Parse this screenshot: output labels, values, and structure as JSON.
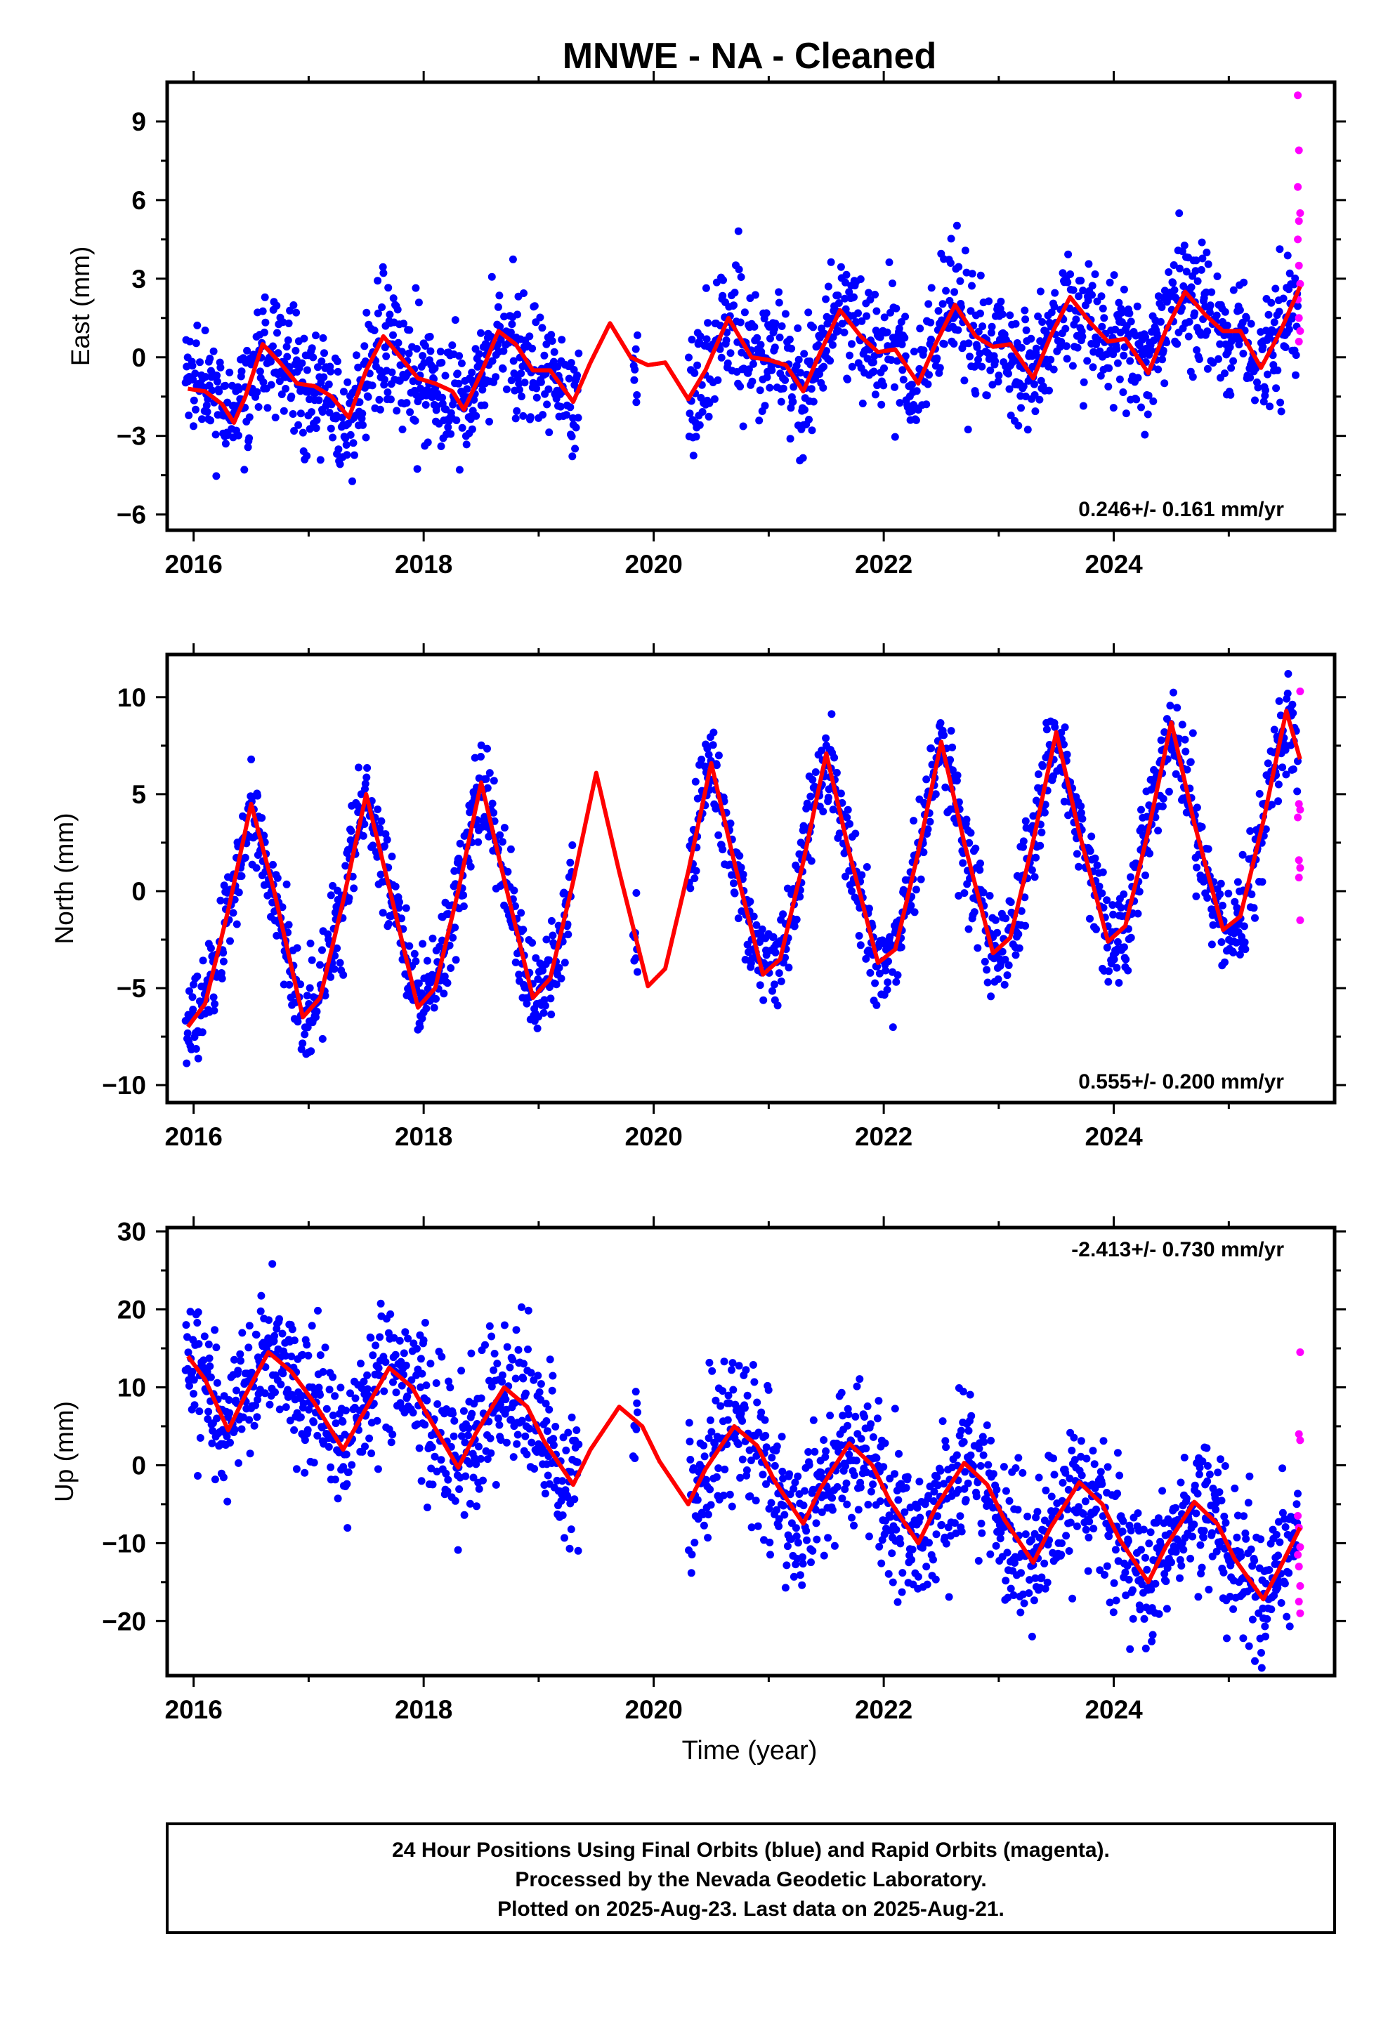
{
  "title": "MNWE  - NA - Cleaned",
  "footer": {
    "lines": [
      "24 Hour Positions Using Final Orbits (blue) and Rapid Orbits (magenta).",
      "Processed by the Nevada Geodetic Laboratory.",
      "Plotted on 2025-Aug-23. Last data on 2025-Aug-21."
    ]
  },
  "colors": {
    "final": "#0000ff",
    "rapid": "#ff00ff",
    "model": "#ff0000",
    "frame": "#000000"
  },
  "chart_data": [
    {
      "type": "scatter",
      "ylabel": "East (mm)",
      "xlabel": "",
      "rate_label": "0.246+/- 0.161 mm/yr",
      "xlim": [
        2015.77,
        2025.92
      ],
      "ylim": [
        -6.6,
        10.5
      ],
      "xticks": [
        2016,
        2018,
        2020,
        2022,
        2024
      ],
      "yticks": [
        -6,
        -3,
        0,
        3,
        6,
        9
      ],
      "grid": false,
      "series": [
        {
          "role": "model",
          "values": [
            {
              "x": 2015.95,
              "y": -1.2
            },
            {
              "x": 2016.1,
              "y": -1.3
            },
            {
              "x": 2016.25,
              "y": -1.8
            },
            {
              "x": 2016.35,
              "y": -2.5
            },
            {
              "x": 2016.45,
              "y": -1.5
            },
            {
              "x": 2016.6,
              "y": 0.5
            },
            {
              "x": 2016.75,
              "y": -0.2
            },
            {
              "x": 2016.9,
              "y": -1.0
            },
            {
              "x": 2017.05,
              "y": -1.1
            },
            {
              "x": 2017.2,
              "y": -1.5
            },
            {
              "x": 2017.35,
              "y": -2.3
            },
            {
              "x": 2017.5,
              "y": -0.5
            },
            {
              "x": 2017.65,
              "y": 0.8
            },
            {
              "x": 2017.8,
              "y": 0.0
            },
            {
              "x": 2017.95,
              "y": -0.8
            },
            {
              "x": 2018.1,
              "y": -1.0
            },
            {
              "x": 2018.25,
              "y": -1.3
            },
            {
              "x": 2018.35,
              "y": -2.0
            },
            {
              "x": 2018.5,
              "y": -0.6
            },
            {
              "x": 2018.65,
              "y": 1.0
            },
            {
              "x": 2018.8,
              "y": 0.5
            },
            {
              "x": 2018.95,
              "y": -0.5
            },
            {
              "x": 2019.1,
              "y": -0.5
            },
            {
              "x": 2019.3,
              "y": -1.7
            },
            {
              "x": 2019.45,
              "y": -0.2
            },
            {
              "x": 2019.62,
              "y": 1.3
            },
            {
              "x": 2019.8,
              "y": 0.0
            },
            {
              "x": 2019.95,
              "y": -0.3
            },
            {
              "x": 2020.1,
              "y": -0.2
            },
            {
              "x": 2020.3,
              "y": -1.6
            },
            {
              "x": 2020.45,
              "y": -0.5
            },
            {
              "x": 2020.65,
              "y": 1.5
            },
            {
              "x": 2020.85,
              "y": 0.0
            },
            {
              "x": 2021.0,
              "y": -0.1
            },
            {
              "x": 2021.15,
              "y": -0.3
            },
            {
              "x": 2021.3,
              "y": -1.3
            },
            {
              "x": 2021.45,
              "y": 0.2
            },
            {
              "x": 2021.62,
              "y": 1.8
            },
            {
              "x": 2021.8,
              "y": 0.8
            },
            {
              "x": 2021.95,
              "y": 0.2
            },
            {
              "x": 2022.1,
              "y": 0.3
            },
            {
              "x": 2022.3,
              "y": -1.0
            },
            {
              "x": 2022.45,
              "y": 0.5
            },
            {
              "x": 2022.62,
              "y": 2.0
            },
            {
              "x": 2022.8,
              "y": 0.8
            },
            {
              "x": 2022.95,
              "y": 0.4
            },
            {
              "x": 2023.1,
              "y": 0.5
            },
            {
              "x": 2023.3,
              "y": -0.8
            },
            {
              "x": 2023.45,
              "y": 0.8
            },
            {
              "x": 2023.62,
              "y": 2.3
            },
            {
              "x": 2023.8,
              "y": 1.3
            },
            {
              "x": 2023.95,
              "y": 0.6
            },
            {
              "x": 2024.1,
              "y": 0.7
            },
            {
              "x": 2024.3,
              "y": -0.6
            },
            {
              "x": 2024.45,
              "y": 1.0
            },
            {
              "x": 2024.62,
              "y": 2.5
            },
            {
              "x": 2024.8,
              "y": 1.6
            },
            {
              "x": 2024.95,
              "y": 1.0
            },
            {
              "x": 2025.1,
              "y": 1.0
            },
            {
              "x": 2025.28,
              "y": -0.4
            },
            {
              "x": 2025.45,
              "y": 1.0
            },
            {
              "x": 2025.62,
              "y": 2.7
            }
          ]
        },
        {
          "role": "rapid",
          "values": [
            {
              "x": 2025.6,
              "y": 10.0
            },
            {
              "x": 2025.61,
              "y": 7.9
            },
            {
              "x": 2025.6,
              "y": 6.5
            },
            {
              "x": 2025.62,
              "y": 5.5
            },
            {
              "x": 2025.61,
              "y": 5.2
            },
            {
              "x": 2025.6,
              "y": 4.5
            },
            {
              "x": 2025.61,
              "y": 3.5
            },
            {
              "x": 2025.62,
              "y": 2.8
            },
            {
              "x": 2025.6,
              "y": 2.2
            },
            {
              "x": 2025.61,
              "y": 1.5
            },
            {
              "x": 2025.62,
              "y": 1.0
            },
            {
              "x": 2025.61,
              "y": 0.6
            }
          ]
        }
      ],
      "scatter_final": {
        "gap": [
          2019.35,
          2020.3
        ],
        "noise": 1.2
      }
    },
    {
      "type": "scatter",
      "ylabel": "North (mm)",
      "xlabel": "",
      "rate_label": "0.555+/- 0.200 mm/yr",
      "xlim": [
        2015.77,
        2025.92
      ],
      "ylim": [
        -10.9,
        12.2
      ],
      "xticks": [
        2016,
        2018,
        2020,
        2022,
        2024
      ],
      "yticks": [
        -10,
        -5,
        0,
        5,
        10
      ],
      "grid": false,
      "series": [
        {
          "role": "model",
          "values": [
            {
              "x": 2015.95,
              "y": -7.0
            },
            {
              "x": 2016.1,
              "y": -5.8
            },
            {
              "x": 2016.3,
              "y": -1.0
            },
            {
              "x": 2016.5,
              "y": 4.5
            },
            {
              "x": 2016.7,
              "y": 0.0
            },
            {
              "x": 2016.95,
              "y": -6.5
            },
            {
              "x": 2017.1,
              "y": -5.5
            },
            {
              "x": 2017.3,
              "y": -0.5
            },
            {
              "x": 2017.5,
              "y": 5.0
            },
            {
              "x": 2017.7,
              "y": 0.2
            },
            {
              "x": 2017.95,
              "y": -6.0
            },
            {
              "x": 2018.1,
              "y": -5.0
            },
            {
              "x": 2018.3,
              "y": 0.0
            },
            {
              "x": 2018.5,
              "y": 5.6
            },
            {
              "x": 2018.7,
              "y": 0.6
            },
            {
              "x": 2018.95,
              "y": -5.5
            },
            {
              "x": 2019.1,
              "y": -4.5
            },
            {
              "x": 2019.3,
              "y": 0.5
            },
            {
              "x": 2019.5,
              "y": 6.1
            },
            {
              "x": 2019.7,
              "y": 1.0
            },
            {
              "x": 2019.95,
              "y": -4.9
            },
            {
              "x": 2020.1,
              "y": -4.0
            },
            {
              "x": 2020.3,
              "y": 1.0
            },
            {
              "x": 2020.5,
              "y": 6.6
            },
            {
              "x": 2020.7,
              "y": 1.5
            },
            {
              "x": 2020.95,
              "y": -4.3
            },
            {
              "x": 2021.1,
              "y": -3.5
            },
            {
              "x": 2021.3,
              "y": 1.5
            },
            {
              "x": 2021.5,
              "y": 7.1
            },
            {
              "x": 2021.7,
              "y": 2.0
            },
            {
              "x": 2021.95,
              "y": -3.7
            },
            {
              "x": 2022.1,
              "y": -3.0
            },
            {
              "x": 2022.3,
              "y": 2.0
            },
            {
              "x": 2022.5,
              "y": 7.7
            },
            {
              "x": 2022.7,
              "y": 2.5
            },
            {
              "x": 2022.95,
              "y": -3.2
            },
            {
              "x": 2023.1,
              "y": -2.4
            },
            {
              "x": 2023.3,
              "y": 2.6
            },
            {
              "x": 2023.5,
              "y": 8.2
            },
            {
              "x": 2023.7,
              "y": 3.0
            },
            {
              "x": 2023.95,
              "y": -2.6
            },
            {
              "x": 2024.1,
              "y": -1.8
            },
            {
              "x": 2024.3,
              "y": 3.1
            },
            {
              "x": 2024.5,
              "y": 8.7
            },
            {
              "x": 2024.7,
              "y": 3.5
            },
            {
              "x": 2024.95,
              "y": -2.0
            },
            {
              "x": 2025.1,
              "y": -1.3
            },
            {
              "x": 2025.3,
              "y": 3.6
            },
            {
              "x": 2025.5,
              "y": 9.3
            },
            {
              "x": 2025.62,
              "y": 6.8
            }
          ]
        },
        {
          "role": "rapid",
          "values": [
            {
              "x": 2025.62,
              "y": 10.3
            },
            {
              "x": 2025.61,
              "y": 4.5
            },
            {
              "x": 2025.62,
              "y": 4.2
            },
            {
              "x": 2025.6,
              "y": 3.8
            },
            {
              "x": 2025.61,
              "y": 1.6
            },
            {
              "x": 2025.62,
              "y": 1.2
            },
            {
              "x": 2025.61,
              "y": 0.7
            },
            {
              "x": 2025.62,
              "y": -1.5
            }
          ]
        }
      ],
      "scatter_final": {
        "gap": [
          2019.3,
          2020.3
        ],
        "noise": 1.2
      }
    },
    {
      "type": "scatter",
      "ylabel": "Up (mm)",
      "xlabel": "Time (year)",
      "rate_label": "-2.413+/- 0.730 mm/yr",
      "xlim": [
        2015.77,
        2025.92
      ],
      "ylim": [
        -27.0,
        30.5
      ],
      "xticks": [
        2016,
        2018,
        2020,
        2022,
        2024
      ],
      "yticks": [
        -20,
        -10,
        0,
        10,
        20,
        30
      ],
      "grid": false,
      "series": [
        {
          "role": "model",
          "values": [
            {
              "x": 2015.95,
              "y": 14.0
            },
            {
              "x": 2016.1,
              "y": 11.0
            },
            {
              "x": 2016.3,
              "y": 4.5
            },
            {
              "x": 2016.45,
              "y": 9.0
            },
            {
              "x": 2016.65,
              "y": 14.5
            },
            {
              "x": 2016.85,
              "y": 12.0
            },
            {
              "x": 2017.05,
              "y": 8.0
            },
            {
              "x": 2017.3,
              "y": 2.0
            },
            {
              "x": 2017.45,
              "y": 6.0
            },
            {
              "x": 2017.7,
              "y": 12.5
            },
            {
              "x": 2017.9,
              "y": 10.0
            },
            {
              "x": 2018.05,
              "y": 6.0
            },
            {
              "x": 2018.3,
              "y": -0.3
            },
            {
              "x": 2018.45,
              "y": 4.0
            },
            {
              "x": 2018.7,
              "y": 10.0
            },
            {
              "x": 2018.9,
              "y": 7.5
            },
            {
              "x": 2019.05,
              "y": 3.0
            },
            {
              "x": 2019.3,
              "y": -2.5
            },
            {
              "x": 2019.45,
              "y": 2.0
            },
            {
              "x": 2019.7,
              "y": 7.5
            },
            {
              "x": 2019.9,
              "y": 5.0
            },
            {
              "x": 2020.05,
              "y": 0.5
            },
            {
              "x": 2020.3,
              "y": -5.0
            },
            {
              "x": 2020.45,
              "y": -0.5
            },
            {
              "x": 2020.7,
              "y": 5.0
            },
            {
              "x": 2020.9,
              "y": 2.5
            },
            {
              "x": 2021.05,
              "y": -2.0
            },
            {
              "x": 2021.3,
              "y": -7.5
            },
            {
              "x": 2021.45,
              "y": -3.0
            },
            {
              "x": 2021.7,
              "y": 2.8
            },
            {
              "x": 2021.9,
              "y": 0.0
            },
            {
              "x": 2022.05,
              "y": -4.5
            },
            {
              "x": 2022.3,
              "y": -10.0
            },
            {
              "x": 2022.45,
              "y": -5.5
            },
            {
              "x": 2022.7,
              "y": 0.3
            },
            {
              "x": 2022.9,
              "y": -2.5
            },
            {
              "x": 2023.05,
              "y": -7.0
            },
            {
              "x": 2023.3,
              "y": -12.5
            },
            {
              "x": 2023.45,
              "y": -8.0
            },
            {
              "x": 2023.7,
              "y": -2.2
            },
            {
              "x": 2023.9,
              "y": -5.0
            },
            {
              "x": 2024.05,
              "y": -9.5
            },
            {
              "x": 2024.3,
              "y": -15.0
            },
            {
              "x": 2024.45,
              "y": -10.5
            },
            {
              "x": 2024.7,
              "y": -4.7
            },
            {
              "x": 2024.9,
              "y": -7.5
            },
            {
              "x": 2025.05,
              "y": -12.0
            },
            {
              "x": 2025.3,
              "y": -17.2
            },
            {
              "x": 2025.45,
              "y": -13.0
            },
            {
              "x": 2025.62,
              "y": -8.0
            }
          ]
        },
        {
          "role": "rapid",
          "values": [
            {
              "x": 2025.62,
              "y": 14.5
            },
            {
              "x": 2025.61,
              "y": 4.0
            },
            {
              "x": 2025.62,
              "y": 3.2
            },
            {
              "x": 2025.6,
              "y": -6.5
            },
            {
              "x": 2025.61,
              "y": -8.0
            },
            {
              "x": 2025.62,
              "y": -10.5
            },
            {
              "x": 2025.6,
              "y": -11.5
            },
            {
              "x": 2025.61,
              "y": -13.0
            },
            {
              "x": 2025.62,
              "y": -15.5
            },
            {
              "x": 2025.61,
              "y": -17.5
            },
            {
              "x": 2025.62,
              "y": -19.0
            }
          ]
        }
      ],
      "scatter_final": {
        "gap": [
          2019.35,
          2020.3
        ],
        "noise": 4.5
      }
    }
  ]
}
